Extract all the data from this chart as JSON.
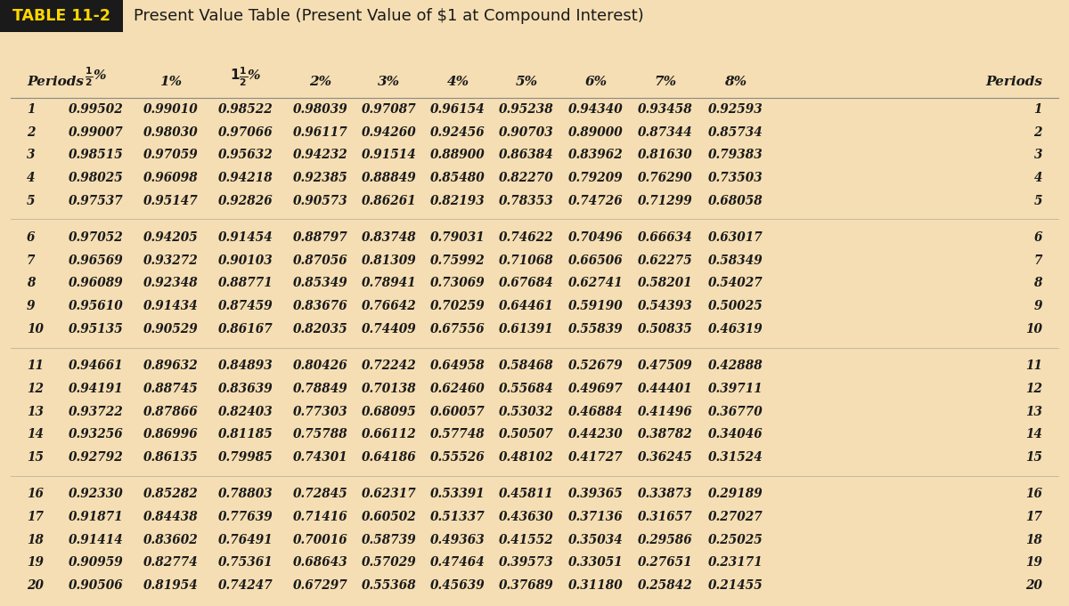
{
  "title_box_text": "TABLE 11-2",
  "title_main_text": "Present Value Table (Present Value of $1 at Compound Interest)",
  "bg_color": "#f5deb3",
  "header_bg": "#7a1a1a",
  "title_box_bg": "#1a1a1a",
  "title_box_text_color": "#FFD700",
  "title_text_color": "#1a1a1a",
  "col_headers_display": [
    "Periods",
    "1/2%",
    "1%",
    "11/2%",
    "2%",
    "3%",
    "4%",
    "5%",
    "6%",
    "7%",
    "8%",
    "Periods"
  ],
  "rows": [
    [
      1,
      0.99502,
      0.9901,
      0.98522,
      0.98039,
      0.97087,
      0.96154,
      0.95238,
      0.9434,
      0.93458,
      0.92593,
      1
    ],
    [
      2,
      0.99007,
      0.9803,
      0.97066,
      0.96117,
      0.9426,
      0.92456,
      0.90703,
      0.89,
      0.87344,
      0.85734,
      2
    ],
    [
      3,
      0.98515,
      0.97059,
      0.95632,
      0.94232,
      0.91514,
      0.889,
      0.86384,
      0.83962,
      0.8163,
      0.79383,
      3
    ],
    [
      4,
      0.98025,
      0.96098,
      0.94218,
      0.92385,
      0.88849,
      0.8548,
      0.8227,
      0.79209,
      0.7629,
      0.73503,
      4
    ],
    [
      5,
      0.97537,
      0.95147,
      0.92826,
      0.90573,
      0.86261,
      0.82193,
      0.78353,
      0.74726,
      0.71299,
      0.68058,
      5
    ],
    [
      6,
      0.97052,
      0.94205,
      0.91454,
      0.88797,
      0.83748,
      0.79031,
      0.74622,
      0.70496,
      0.66634,
      0.63017,
      6
    ],
    [
      7,
      0.96569,
      0.93272,
      0.90103,
      0.87056,
      0.81309,
      0.75992,
      0.71068,
      0.66506,
      0.62275,
      0.58349,
      7
    ],
    [
      8,
      0.96089,
      0.92348,
      0.88771,
      0.85349,
      0.78941,
      0.73069,
      0.67684,
      0.62741,
      0.58201,
      0.54027,
      8
    ],
    [
      9,
      0.9561,
      0.91434,
      0.87459,
      0.83676,
      0.76642,
      0.70259,
      0.64461,
      0.5919,
      0.54393,
      0.50025,
      9
    ],
    [
      10,
      0.95135,
      0.90529,
      0.86167,
      0.82035,
      0.74409,
      0.67556,
      0.61391,
      0.55839,
      0.50835,
      0.46319,
      10
    ],
    [
      11,
      0.94661,
      0.89632,
      0.84893,
      0.80426,
      0.72242,
      0.64958,
      0.58468,
      0.52679,
      0.47509,
      0.42888,
      11
    ],
    [
      12,
      0.94191,
      0.88745,
      0.83639,
      0.78849,
      0.70138,
      0.6246,
      0.55684,
      0.49697,
      0.44401,
      0.39711,
      12
    ],
    [
      13,
      0.93722,
      0.87866,
      0.82403,
      0.77303,
      0.68095,
      0.60057,
      0.53032,
      0.46884,
      0.41496,
      0.3677,
      13
    ],
    [
      14,
      0.93256,
      0.86996,
      0.81185,
      0.75788,
      0.66112,
      0.57748,
      0.50507,
      0.4423,
      0.38782,
      0.34046,
      14
    ],
    [
      15,
      0.92792,
      0.86135,
      0.79985,
      0.74301,
      0.64186,
      0.55526,
      0.48102,
      0.41727,
      0.36245,
      0.31524,
      15
    ],
    [
      16,
      0.9233,
      0.85282,
      0.78803,
      0.72845,
      0.62317,
      0.53391,
      0.45811,
      0.39365,
      0.33873,
      0.29189,
      16
    ],
    [
      17,
      0.91871,
      0.84438,
      0.77639,
      0.71416,
      0.60502,
      0.51337,
      0.4363,
      0.37136,
      0.31657,
      0.27027,
      17
    ],
    [
      18,
      0.91414,
      0.83602,
      0.76491,
      0.70016,
      0.58739,
      0.49363,
      0.41552,
      0.35034,
      0.29586,
      0.25025,
      18
    ],
    [
      19,
      0.90959,
      0.82774,
      0.75361,
      0.68643,
      0.57029,
      0.47464,
      0.39573,
      0.33051,
      0.27651,
      0.23171,
      19
    ],
    [
      20,
      0.90506,
      0.81954,
      0.74247,
      0.67297,
      0.55368,
      0.45639,
      0.37689,
      0.3118,
      0.25842,
      0.21455,
      20
    ]
  ],
  "group_breaks": [
    5,
    10,
    15
  ],
  "text_color": "#1a1a1a",
  "line_color": "#888888",
  "data_font_size": 9.8,
  "header_font_size": 11.0,
  "title_font_size": 13.0,
  "table_tag_font_size": 12.5
}
